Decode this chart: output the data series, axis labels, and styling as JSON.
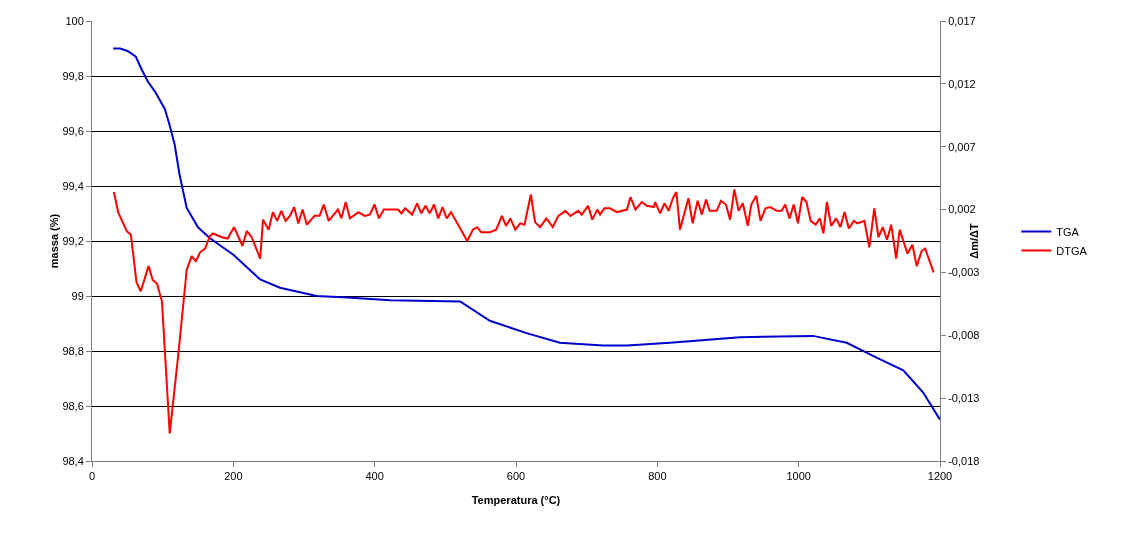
{
  "chart_data": {
    "type": "line",
    "xlabel": "Temperatura (°C)",
    "ylabel": "massa (%)",
    "y2label": "Δm/ΔT",
    "xlim": [
      0,
      1200
    ],
    "xticks": [
      0,
      200,
      400,
      600,
      800,
      1000,
      1200
    ],
    "ylim": [
      98.4,
      100
    ],
    "yticks": [
      {
        "value": 98.4,
        "label": "98,4"
      },
      {
        "value": 98.6,
        "label": "98,6"
      },
      {
        "value": 98.8,
        "label": "98,8"
      },
      99,
      {
        "value": 99.2,
        "label": "99,2"
      },
      {
        "value": 99.4,
        "label": "99,4"
      },
      {
        "value": 99.6,
        "label": "99,6"
      },
      {
        "value": 99.8,
        "label": "99,8"
      },
      100
    ],
    "y2lim": [
      -0.018,
      0.017
    ],
    "y2ticks": [
      {
        "value": -0.018,
        "label": "-0,018"
      },
      {
        "value": -0.013,
        "label": "-0,013"
      },
      {
        "value": -0.008,
        "label": "-0,008"
      },
      {
        "value": -0.003,
        "label": "-0,003"
      },
      {
        "value": 0.002,
        "label": "0,002"
      },
      {
        "value": 0.007,
        "label": "0,007"
      },
      {
        "value": 0.012,
        "label": "0,012"
      },
      {
        "value": 0.017,
        "label": "0,017"
      }
    ],
    "grid": "y",
    "legend": "right",
    "marker": "none",
    "line_style": "solid",
    "series": [
      {
        "name": "TGA",
        "color": "#0000cc",
        "x": [
          30,
          40,
          51,
          62,
          71,
          79,
          90,
          103,
          110,
          117,
          124,
          134,
          150,
          167,
          200,
          238,
          266,
          318,
          361,
          422,
          521,
          563,
          615,
          662,
          723,
          757,
          818,
          917,
          1020,
          1068,
          1111,
          1148,
          1176,
          1200
        ],
        "values": [
          99.9,
          99.9,
          99.89,
          99.87,
          99.82,
          99.78,
          99.74,
          99.68,
          99.62,
          99.55,
          99.44,
          99.32,
          99.25,
          99.21,
          99.15,
          99.06,
          99.03,
          99.0,
          98.995,
          98.985,
          98.98,
          98.91,
          98.865,
          98.83,
          98.82,
          98.82,
          98.83,
          98.85,
          98.855,
          98.83,
          98.775,
          98.73,
          98.65,
          98.55
        ]
      },
      {
        "name": "DTGA",
        "color": "#ff0000",
        "axis": "y2",
        "x": [
          31,
          37,
          49,
          55,
          63,
          69,
          80,
          86,
          92,
          99,
          110,
          122,
          134,
          141,
          147,
          153,
          160,
          167,
          171,
          184,
          192,
          201,
          213,
          219,
          226,
          238,
          242,
          250,
          256,
          262,
          268,
          274,
          280,
          286,
          292,
          298,
          304,
          315,
          322,
          328,
          335,
          348,
          353,
          359,
          365,
          377,
          386,
          393,
          400,
          406,
          413,
          424,
          433,
          438,
          443,
          453,
          460,
          466,
          472,
          478,
          484,
          490,
          496,
          502,
          508,
          531,
          539,
          545,
          551,
          563,
          572,
          580,
          586,
          592,
          599,
          606,
          612,
          621,
          627,
          634,
          643,
          652,
          660,
          670,
          677,
          688,
          693,
          702,
          708,
          715,
          719,
          725,
          733,
          743,
          757,
          762,
          769,
          778,
          785,
          795,
          797,
          804,
          810,
          816,
          822,
          827,
          832,
          844,
          850,
          857,
          863,
          869,
          874,
          884,
          890,
          897,
          903,
          909,
          915,
          921,
          928,
          933,
          940,
          946,
          953,
          960,
          969,
          976,
          981,
          987,
          993,
          999,
          1005,
          1011,
          1017,
          1024,
          1030,
          1035,
          1040,
          1046,
          1053,
          1059,
          1065,
          1071,
          1078,
          1083,
          1093,
          1100,
          1107,
          1113,
          1119,
          1125,
          1131,
          1138,
          1143,
          1154,
          1161,
          1167,
          1174,
          1179,
          1191
        ],
        "values": [
          0.0034,
          0.0018,
          0.0003,
          0.0,
          -0.0038,
          -0.0045,
          -0.0025,
          -0.0036,
          -0.0039,
          -0.0053,
          -0.0158,
          -0.0096,
          -0.0028,
          -0.0017,
          -0.0021,
          -0.0014,
          -0.0011,
          -0.0001,
          0.0001,
          -0.0002,
          -0.0003,
          0.0006,
          -0.0009,
          0.0003,
          -0.0002,
          -0.0019,
          0.0012,
          0.0004,
          0.0018,
          0.0011,
          0.0019,
          0.0011,
          0.0015,
          0.0022,
          0.0009,
          0.002,
          0.0008,
          0.0015,
          0.0015,
          0.0024,
          0.0011,
          0.002,
          0.0013,
          0.0026,
          0.0013,
          0.0018,
          0.0015,
          0.0016,
          0.0024,
          0.0013,
          0.002,
          0.002,
          0.002,
          0.0017,
          0.0021,
          0.0016,
          0.0025,
          0.0017,
          0.0023,
          0.0017,
          0.0024,
          0.0013,
          0.0022,
          0.0013,
          0.0018,
          -0.0005,
          0.0004,
          0.0006,
          0.0002,
          0.0002,
          0.0004,
          0.0015,
          0.0007,
          0.0013,
          0.0004,
          0.0009,
          0.0008,
          0.0032,
          0.001,
          0.0006,
          0.0013,
          0.0006,
          0.0015,
          0.0019,
          0.0015,
          0.0019,
          0.0016,
          0.0023,
          0.0012,
          0.002,
          0.0016,
          0.0021,
          0.0021,
          0.0018,
          0.002,
          0.003,
          0.002,
          0.0026,
          0.0023,
          0.0022,
          0.0026,
          0.0017,
          0.0025,
          0.0019,
          0.0029,
          0.0034,
          0.0004,
          0.0029,
          0.0009,
          0.0027,
          0.0016,
          0.0028,
          0.0019,
          0.0019,
          0.0027,
          0.0024,
          0.0012,
          0.0036,
          0.0019,
          0.0025,
          0.0007,
          0.0024,
          0.0031,
          0.0011,
          0.0021,
          0.0022,
          0.0019,
          0.0019,
          0.0024,
          0.0013,
          0.0024,
          0.0009,
          0.003,
          0.0026,
          0.0011,
          0.0008,
          0.0013,
          0.0001,
          0.0026,
          0.0007,
          0.0013,
          0.0006,
          0.0018,
          0.0005,
          0.0011,
          0.0009,
          0.0011,
          -0.001,
          0.0021,
          -0.0002,
          0.0006,
          -0.0004,
          0.0008,
          -0.0019,
          0.0004,
          -0.0015,
          -0.0008,
          -0.0025,
          -0.0013,
          -0.0011,
          -0.003
        ]
      }
    ]
  }
}
